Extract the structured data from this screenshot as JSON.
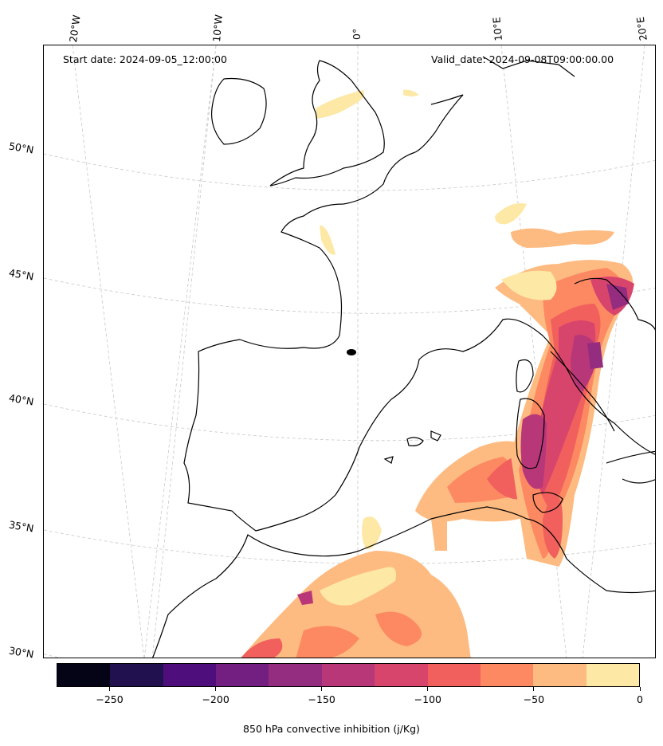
{
  "start_date": "Start date: 2024-09-05_12:00:00",
  "valid_date": "Valid_date: 2024-09-08T09:00:00.00",
  "lon_labels": [
    "20°W",
    "10°W",
    "0°",
    "10°E",
    "20°E"
  ],
  "lat_labels": [
    "50°N",
    "45°N",
    "40°N",
    "35°N",
    "30°N"
  ],
  "colorbar": {
    "title": "850 hPa convective inhibition (j/Kg)",
    "ticks": [
      "−250",
      "−200",
      "−150",
      "−100",
      "−50",
      "0"
    ],
    "colors": [
      "#050417",
      "#21114e",
      "#4e0f7c",
      "#721f81",
      "#942c80",
      "#b73779",
      "#d8456c",
      "#f1605d",
      "#fd8962",
      "#febb81",
      "#fde8a5"
    ],
    "range": [
      -275,
      0
    ]
  },
  "colors": {
    "coast": "#000000",
    "grid": "#c8c8c8"
  }
}
